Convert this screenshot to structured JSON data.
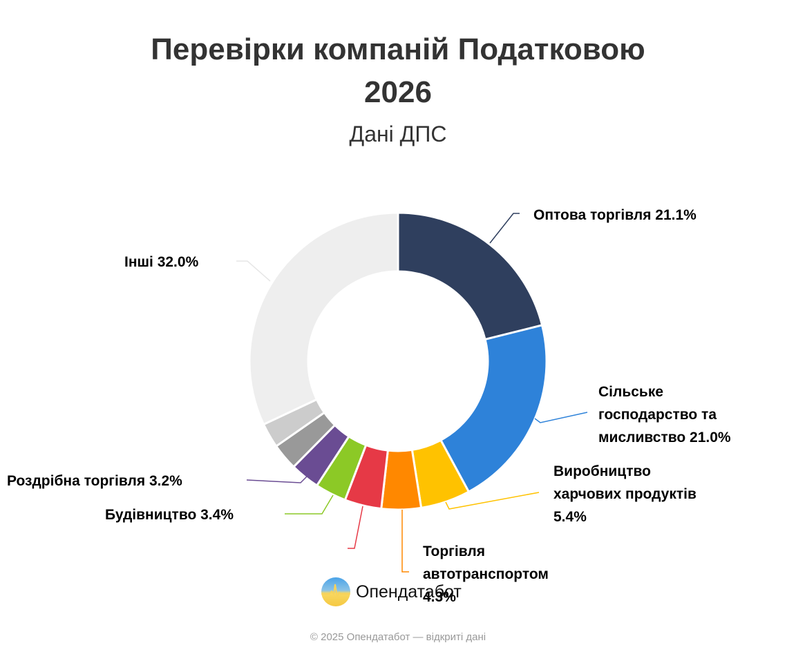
{
  "header": {
    "title_line1": "Перевірки компаній Податковою",
    "title_line2": "2026",
    "subtitle": "Дані ДПС"
  },
  "brand": {
    "name": "Опендатабот",
    "icon": "opendatabot-logo-icon"
  },
  "footer": {
    "text": "© 2025 Опендатабот — відкриті дані"
  },
  "chart_data": {
    "type": "pie",
    "variant": "donut",
    "title": "Перевірки компаній Податковою 2026",
    "subtitle": "Дані ДПС",
    "legend": "none (data labels with connectors)",
    "categories": [
      "Оптова торгівля",
      "Сільське господарство та мисливство",
      "Виробництво харчових продуктів",
      "Торгівля автотранспортом",
      "",
      "Будівництво",
      "Роздрібна торгівля",
      "",
      "",
      "Інші"
    ],
    "values": [
      21.1,
      21.0,
      5.4,
      4.3,
      4.0,
      3.4,
      3.2,
      2.9,
      2.7,
      32.0
    ],
    "colors": [
      "#2f3f5e",
      "#2e82d9",
      "#ffc200",
      "#ff8800",
      "#e63946",
      "#8cc926",
      "#6a4c93",
      "#999999",
      "#cccccc",
      "#eeeeee"
    ],
    "labels": [
      "Оптова торгівля 21.1%",
      "Сільське господарство та мисливство 21.0%",
      "Виробництво харчових продуктів 5.4%",
      "Торгівля автотранспортом 4.3%",
      "",
      "Будівництво 3.4%",
      "Роздрібна торгівля 3.2%",
      "",
      "",
      "Інші 32.0%"
    ],
    "unit": "%"
  },
  "chart_labels": {
    "wholesale": [
      "Оптова торгівля 21.1%"
    ],
    "agriculture": [
      "Сільське",
      "господарство та",
      "мисливство 21.0%"
    ],
    "food": [
      "Виробництво",
      "харчових продуктів",
      "5.4%"
    ],
    "auto": [
      "Торгівля",
      "автотранспортом",
      "4.3%"
    ],
    "construction": [
      "Будівництво 3.4%"
    ],
    "retail": [
      "Роздрібна торгівля 3.2%"
    ],
    "other": [
      "Інші 32.0%"
    ]
  }
}
